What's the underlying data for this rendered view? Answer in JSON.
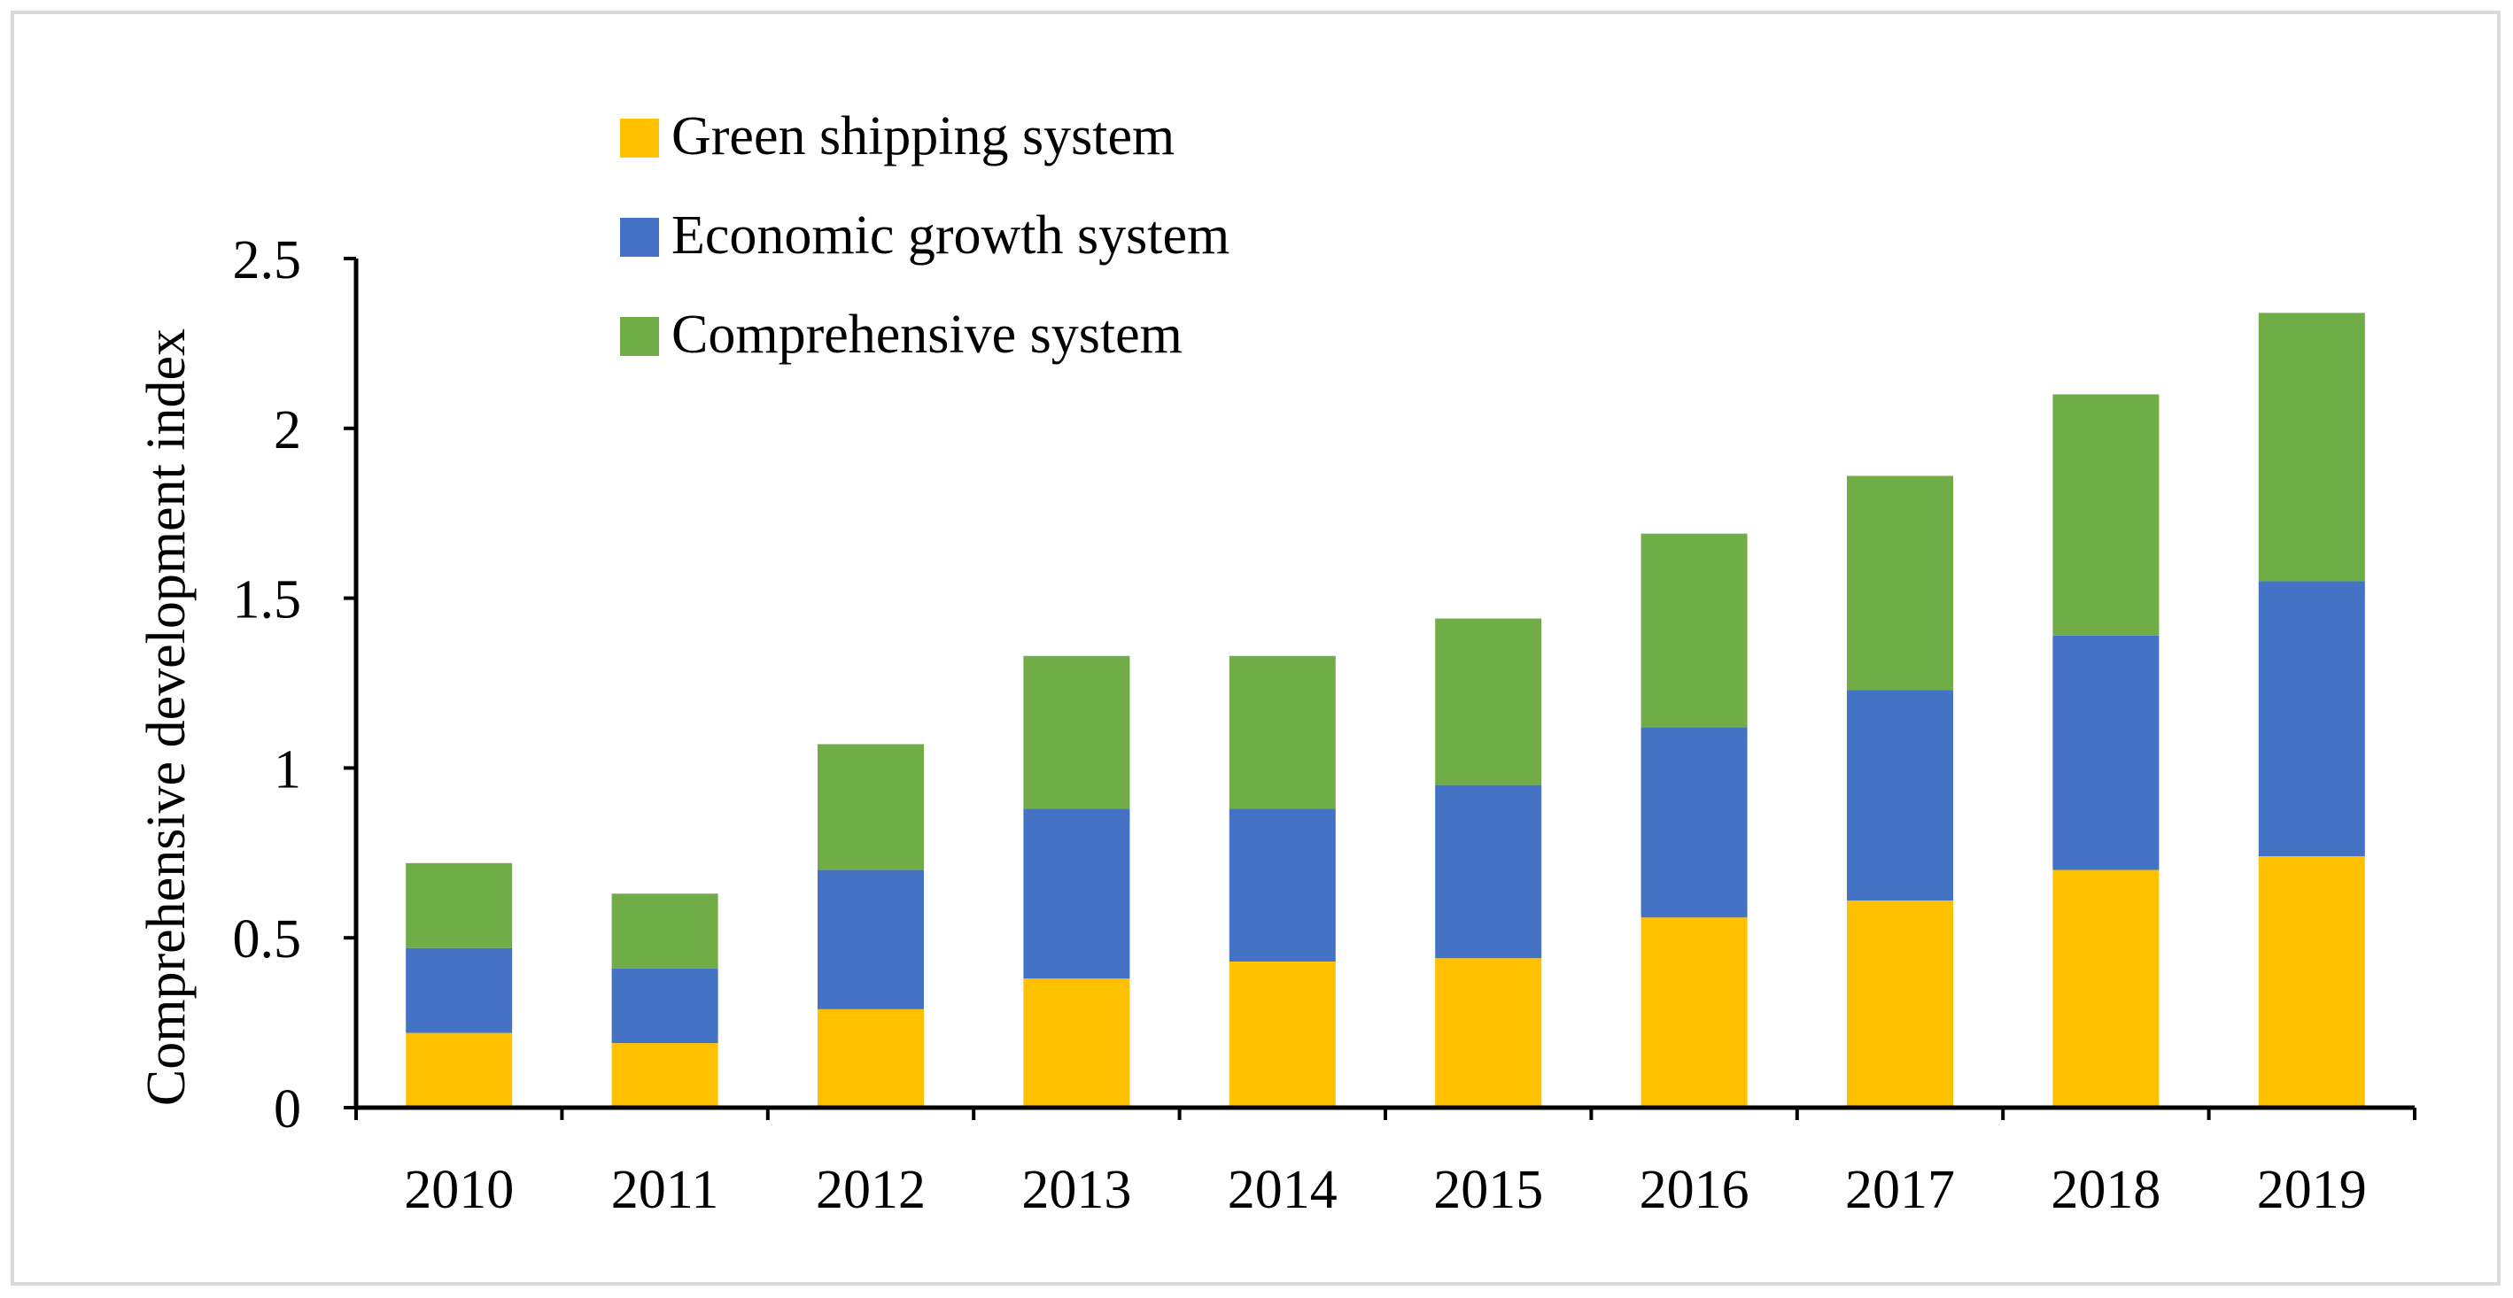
{
  "chart_data": {
    "type": "bar",
    "stacked": true,
    "title": "",
    "xlabel": "",
    "ylabel": "Comprehensive development index",
    "ylim": [
      0,
      2.5
    ],
    "yticks": [
      0,
      0.5,
      1,
      1.5,
      2,
      2.5
    ],
    "ytick_labels": [
      "0",
      "0.5",
      "1",
      "1.5",
      "2",
      "2.5"
    ],
    "categories": [
      "2010",
      "2011",
      "2012",
      "2013",
      "2014",
      "2015",
      "2016",
      "2017",
      "2018",
      "2019"
    ],
    "legend_position": "top-left",
    "grid": false,
    "series": [
      {
        "name": "Green shipping system",
        "color": "#ffc000",
        "values": [
          0.22,
          0.19,
          0.29,
          0.38,
          0.43,
          0.44,
          0.56,
          0.61,
          0.7,
          0.74
        ]
      },
      {
        "name": "Economic growth system",
        "color": "#4472c4",
        "values": [
          0.25,
          0.22,
          0.41,
          0.5,
          0.45,
          0.51,
          0.56,
          0.62,
          0.69,
          0.81
        ]
      },
      {
        "name": "Comprehensive system",
        "color": "#70ad47",
        "values": [
          0.25,
          0.22,
          0.37,
          0.45,
          0.45,
          0.49,
          0.57,
          0.63,
          0.71,
          0.79
        ]
      }
    ]
  }
}
